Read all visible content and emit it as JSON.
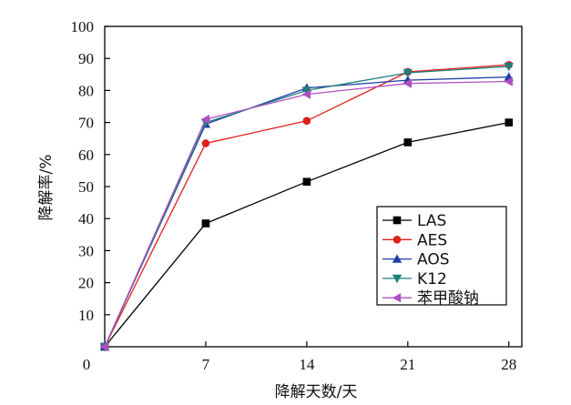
{
  "chart_data": {
    "type": "line",
    "xlabel": "降解天数/天",
    "ylabel": "降解率/%",
    "x": [
      0,
      7,
      14,
      21,
      28
    ],
    "x_ticks": [
      "0",
      "7",
      "14",
      "21",
      "28"
    ],
    "y_ticks": [
      "10",
      "20",
      "30",
      "40",
      "50",
      "60",
      "70",
      "80",
      "90",
      "100"
    ],
    "ylim": [
      0,
      100
    ],
    "grid": false,
    "legend_position": "bottom-right",
    "series": [
      {
        "name": "LAS",
        "values": [
          0,
          38.5,
          51.5,
          63.8,
          70.0
        ],
        "color": "#000000",
        "marker": "square"
      },
      {
        "name": "AES",
        "values": [
          0,
          63.5,
          70.5,
          85.8,
          88.0
        ],
        "color": "#e0201b",
        "marker": "circle"
      },
      {
        "name": "AOS",
        "values": [
          0,
          69.5,
          80.8,
          83.2,
          84.2
        ],
        "color": "#1f3ea6",
        "marker": "triangle-up"
      },
      {
        "name": "K12",
        "values": [
          0,
          70.0,
          80.0,
          85.5,
          87.5
        ],
        "color": "#1f7f7a",
        "marker": "triangle-down"
      },
      {
        "name": "苯甲酸钠",
        "values": [
          0,
          71.0,
          78.8,
          82.2,
          82.8
        ],
        "color": "#b04fc0",
        "marker": "triangle-left"
      }
    ]
  }
}
